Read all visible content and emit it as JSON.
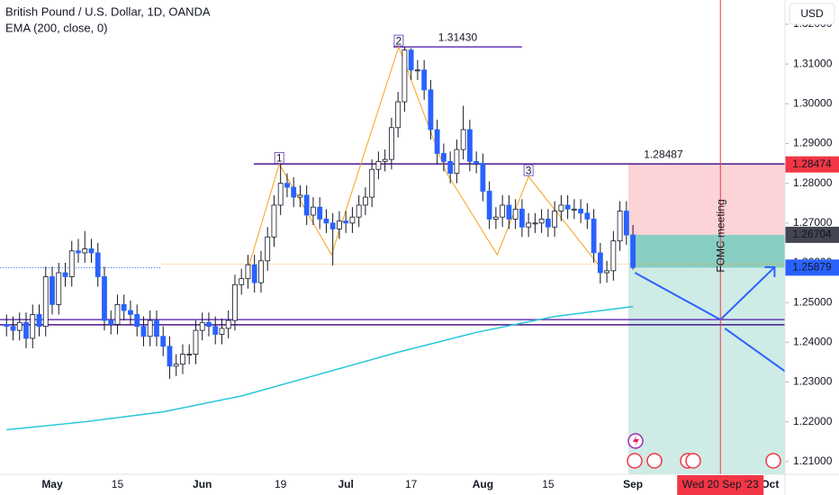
{
  "header": {
    "symbol": "British Pound / U.S. Dollar, 1D, OANDA",
    "currency": "USD"
  },
  "chart_data": {
    "type": "candlestick",
    "up_color": "#ffffff",
    "down_color": "#2962ff",
    "outline_color": "#131722",
    "xlim": [
      -1,
      119.3
    ],
    "ylim": [
      1.2068,
      1.3261
    ],
    "grid": false,
    "xticks": [
      {
        "value": 7,
        "label": "May"
      },
      {
        "value": 17,
        "label": "15"
      },
      {
        "value": 30,
        "label": "Jun"
      },
      {
        "value": 42,
        "label": "19"
      },
      {
        "value": 52,
        "label": "Jul"
      },
      {
        "value": 62,
        "label": "17"
      },
      {
        "value": 73,
        "label": "Aug"
      },
      {
        "value": 83,
        "label": "15"
      },
      {
        "value": 96,
        "label": "Sep"
      },
      {
        "value": 117,
        "label": "Oct"
      }
    ],
    "yticks": [
      {
        "value": 1.21,
        "label": "1.21000"
      },
      {
        "value": 1.22,
        "label": "1.22000"
      },
      {
        "value": 1.23,
        "label": "1.23000"
      },
      {
        "value": 1.24,
        "label": "1.24000"
      },
      {
        "value": 1.25,
        "label": "1.25000"
      },
      {
        "value": 1.26,
        "label": "1.26000"
      },
      {
        "value": 1.27,
        "label": "1.27000"
      },
      {
        "value": 1.28,
        "label": "1.28000"
      },
      {
        "value": 1.29,
        "label": "1.29000"
      },
      {
        "value": 1.3,
        "label": "1.30000"
      },
      {
        "value": 1.31,
        "label": "1.31000"
      },
      {
        "value": 1.32,
        "label": "1.32000"
      }
    ],
    "open": [
      1.2445,
      1.244,
      1.243,
      1.245,
      1.241,
      1.247,
      1.244,
      1.2565,
      1.2495,
      1.2575,
      1.2565,
      1.263,
      1.2625,
      1.2635,
      1.2625,
      1.2565,
      1.2455,
      1.2445,
      1.2495,
      1.248,
      1.247,
      1.244,
      1.2415,
      1.2455,
      1.2415,
      1.239,
      1.234,
      1.2345,
      1.237,
      1.237,
      1.243,
      1.245,
      1.244,
      1.242,
      1.2435,
      1.2455,
      1.2545,
      1.256,
      1.2595,
      1.255,
      1.2605,
      1.2665,
      1.2745,
      1.28,
      1.279,
      1.2765,
      1.277,
      1.272,
      1.274,
      1.271,
      1.27,
      1.2685,
      1.2705,
      1.27,
      1.2715,
      1.2745,
      1.2765,
      1.2835,
      1.2855,
      1.286,
      1.294,
      1.3005,
      1.3135,
      1.3085,
      1.3085,
      1.3035,
      1.2935,
      1.2875,
      1.2855,
      1.2825,
      1.2885,
      1.2935,
      1.2855,
      1.285,
      1.278,
      1.271,
      1.2715,
      1.2745,
      1.271,
      1.2735,
      1.269,
      1.27,
      1.27,
      1.271,
      1.269,
      1.273,
      1.2745,
      1.2735,
      1.2735,
      1.2725,
      1.271,
      1.2625,
      1.2575,
      1.258,
      1.2655,
      1.273,
      1.267
    ],
    "high": [
      1.247,
      1.2465,
      1.2475,
      1.2475,
      1.2495,
      1.2495,
      1.259,
      1.259,
      1.26,
      1.26,
      1.2655,
      1.266,
      1.268,
      1.266,
      1.265,
      1.259,
      1.248,
      1.252,
      1.252,
      1.2505,
      1.2495,
      1.2465,
      1.248,
      1.248,
      1.244,
      1.2415,
      1.237,
      1.2395,
      1.2395,
      1.2455,
      1.2475,
      1.2475,
      1.2465,
      1.246,
      1.248,
      1.257,
      1.2585,
      1.262,
      1.262,
      1.263,
      1.269,
      1.277,
      1.2848,
      1.2825,
      1.2815,
      1.2795,
      1.2795,
      1.2765,
      1.2765,
      1.2735,
      1.2725,
      1.273,
      1.273,
      1.274,
      1.277,
      1.279,
      1.286,
      1.288,
      1.2885,
      1.2965,
      1.303,
      1.3143,
      1.314,
      1.311,
      1.311,
      1.306,
      1.296,
      1.29,
      1.288,
      1.291,
      1.2995,
      1.296,
      1.288,
      1.2875,
      1.2805,
      1.274,
      1.277,
      1.277,
      1.276,
      1.276,
      1.2725,
      1.2725,
      1.2735,
      1.2735,
      1.2755,
      1.277,
      1.277,
      1.276,
      1.276,
      1.275,
      1.2735,
      1.265,
      1.2605,
      1.268,
      1.2755,
      1.2755,
      1.2695
    ],
    "low": [
      1.2415,
      1.2405,
      1.2405,
      1.2385,
      1.2385,
      1.2415,
      1.2415,
      1.247,
      1.247,
      1.254,
      1.254,
      1.26,
      1.26,
      1.26,
      1.254,
      1.243,
      1.242,
      1.242,
      1.2455,
      1.2445,
      1.2415,
      1.239,
      1.239,
      1.239,
      1.2365,
      1.2308,
      1.2315,
      1.232,
      1.2345,
      1.2345,
      1.2405,
      1.2415,
      1.2395,
      1.2395,
      1.241,
      1.243,
      1.252,
      1.2535,
      1.2525,
      1.2525,
      1.258,
      1.264,
      1.272,
      1.2765,
      1.274,
      1.274,
      1.2695,
      1.2695,
      1.2685,
      1.2675,
      1.2593,
      1.266,
      1.2675,
      1.2675,
      1.269,
      1.272,
      1.274,
      1.281,
      1.283,
      1.2835,
      1.2915,
      1.298,
      1.306,
      1.306,
      1.301,
      1.291,
      1.285,
      1.283,
      1.28,
      1.28,
      1.286,
      1.283,
      1.2825,
      1.2755,
      1.2685,
      1.2685,
      1.269,
      1.2685,
      1.2685,
      1.2665,
      1.2665,
      1.2675,
      1.2675,
      1.2665,
      1.2665,
      1.2705,
      1.271,
      1.271,
      1.27,
      1.2685,
      1.26,
      1.2548,
      1.255,
      1.2555,
      1.263,
      1.2645,
      1.2583
    ],
    "close": [
      1.244,
      1.243,
      1.245,
      1.241,
      1.247,
      1.244,
      1.2565,
      1.2495,
      1.2575,
      1.2565,
      1.263,
      1.2625,
      1.2635,
      1.2625,
      1.2565,
      1.2455,
      1.2445,
      1.2495,
      1.248,
      1.247,
      1.244,
      1.2415,
      1.2455,
      1.2415,
      1.239,
      1.234,
      1.2345,
      1.237,
      1.237,
      1.243,
      1.245,
      1.244,
      1.242,
      1.2435,
      1.2455,
      1.2545,
      1.256,
      1.2595,
      1.255,
      1.2605,
      1.2665,
      1.2745,
      1.28,
      1.279,
      1.2765,
      1.277,
      1.272,
      1.274,
      1.271,
      1.27,
      1.2685,
      1.2705,
      1.27,
      1.2715,
      1.2745,
      1.2765,
      1.2835,
      1.2855,
      1.286,
      1.294,
      1.3005,
      1.3135,
      1.3085,
      1.3085,
      1.3035,
      1.2935,
      1.2875,
      1.2855,
      1.2825,
      1.2885,
      1.2935,
      1.2855,
      1.285,
      1.278,
      1.271,
      1.2715,
      1.2745,
      1.271,
      1.2735,
      1.269,
      1.27,
      1.27,
      1.271,
      1.269,
      1.273,
      1.2745,
      1.2735,
      1.2735,
      1.2725,
      1.271,
      1.2625,
      1.2575,
      1.258,
      1.2655,
      1.273,
      1.267,
      1.2588
    ],
    "ema": {
      "name": "EMA (200, close, 0)",
      "color": "#26c6da",
      "x": [
        0,
        12,
        24,
        36,
        48,
        60,
        72,
        84,
        96
      ],
      "values": [
        1.218,
        1.22,
        1.2225,
        1.2265,
        1.232,
        1.2375,
        1.2425,
        1.2465,
        1.249
      ]
    },
    "boxes": [
      {
        "x": [
          95.3,
          119.3
        ],
        "top": 1.28474,
        "bottom": 1.26704,
        "color": "rgba(242,54,69,0.22)"
      },
      {
        "x": [
          95.3,
          119.3
        ],
        "top": 1.26704,
        "bottom": 1.2068,
        "color": "rgba(8,153,129,0.2)"
      },
      {
        "x": [
          96.3,
          119.3
        ],
        "top": 1.26704,
        "bottom": 1.25879,
        "color": "rgba(8,153,129,0.35)"
      }
    ],
    "levels": [
      {
        "value": 1.3143,
        "label": "1.31430",
        "color": "#673ab7",
        "style": "solid",
        "x": [
          59.3,
          79
        ]
      },
      {
        "value": 1.28487,
        "label": "1.28487",
        "color": "#4a148c",
        "style": "solid",
        "x": [
          37.9,
          119.3
        ]
      },
      {
        "value": 1.2597,
        "color": "#f7a21b",
        "style": "dotted",
        "x": [
          23.8,
          119.3
        ]
      },
      {
        "value": 1.25879,
        "color": "#2962ff",
        "style": "dotted",
        "x": [
          -1,
          23.8
        ]
      },
      {
        "value": 1.2457,
        "color": "#673ab7",
        "style": "solid",
        "x": [
          -1,
          119.3
        ]
      },
      {
        "value": 1.2444,
        "color": "#4a148c",
        "style": "solid",
        "x": [
          -1,
          119.3
        ]
      }
    ],
    "pattern": {
      "color": "#f7a21b",
      "x": [
        37.2,
        41.8,
        49.8,
        60.1,
        67.3,
        75.2,
        80.0,
        90.8
      ],
      "values": [
        1.2595,
        1.2848,
        1.262,
        1.3143,
        1.283,
        1.262,
        1.2817,
        1.2593
      ],
      "point_labels": [
        null,
        "1",
        null,
        "2",
        null,
        null,
        "3",
        null
      ]
    },
    "projection": {
      "color": "#2962ff",
      "segments": [
        {
          "x": [
            96.3,
            109.4,
            117.7
          ],
          "values": [
            1.2575,
            1.2457,
            1.2589
          ]
        },
        {
          "x": [
            110.1,
            119.3
          ],
          "values": [
            1.2435,
            1.2327
          ]
        }
      ]
    },
    "event": {
      "x": 109.4,
      "label": "FOMC meeting",
      "date_label": "Wed 20 Sep '23",
      "color": "#f23645",
      "text_color": "#2196f3"
    },
    "price_labels": [
      {
        "value": 1.28474,
        "label": "1.28474",
        "color": "#f23645"
      },
      {
        "value": 1.26704,
        "label": "1.26704",
        "color": "#434651"
      },
      {
        "value": 1.25879,
        "label": "1.25879",
        "color": "#2962ff"
      }
    ]
  }
}
